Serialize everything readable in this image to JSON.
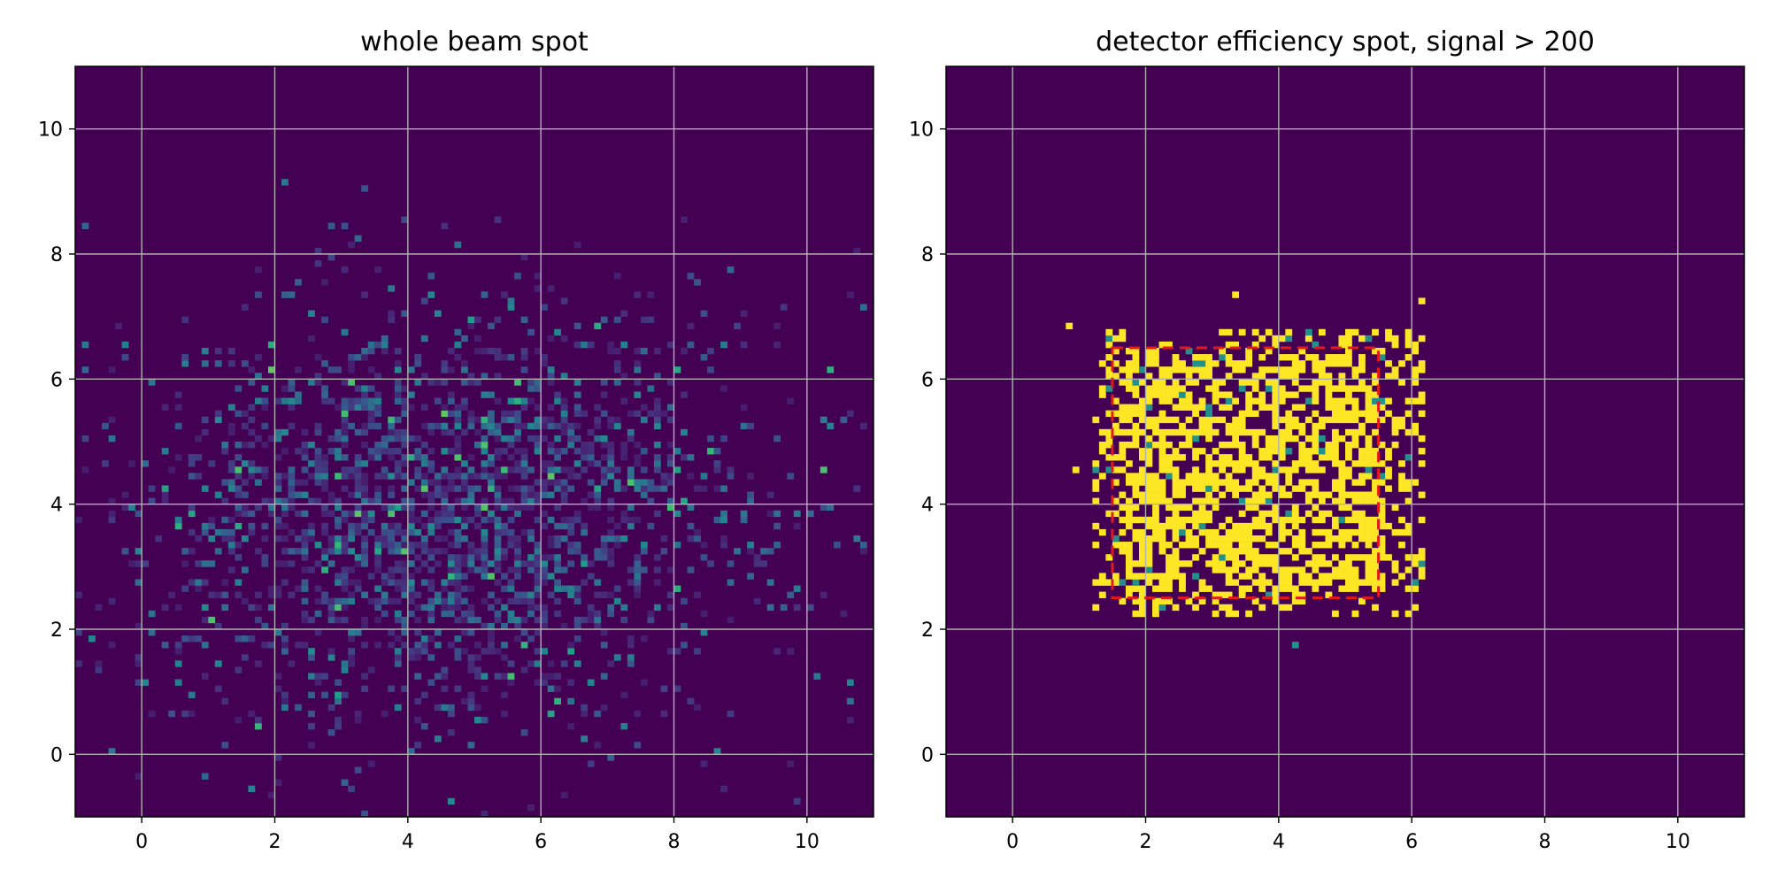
{
  "chart_data": [
    {
      "type": "heatmap",
      "title": "whole beam spot",
      "xlabel": "",
      "ylabel": "",
      "xlim": [
        -1,
        11
      ],
      "ylim": [
        -1,
        11
      ],
      "xticks": [
        0,
        2,
        4,
        6,
        8,
        10
      ],
      "yticks": [
        0,
        2,
        4,
        6,
        8,
        10
      ],
      "grid": true,
      "colormap": "viridis",
      "background": "#440154",
      "bins": {
        "x_min": -1,
        "x_max": 11,
        "y_min": -1,
        "y_max": 11,
        "nx": 120,
        "ny": 120
      },
      "distribution": {
        "shape": "gaussian-like cloud",
        "center": [
          4.5,
          3.8
        ],
        "spread": [
          2.6,
          1.9
        ],
        "peak_relative": 1.0
      }
    },
    {
      "type": "heatmap",
      "title": "detector efficiency spot, signal > 200",
      "xlabel": "",
      "ylabel": "",
      "xlim": [
        -1,
        11
      ],
      "ylim": [
        -1,
        11
      ],
      "xticks": [
        0,
        2,
        4,
        6,
        8,
        10
      ],
      "yticks": [
        0,
        2,
        4,
        6,
        8,
        10
      ],
      "grid": true,
      "colormap": "viridis",
      "background": "#440154",
      "bins": {
        "x_min": -1,
        "x_max": 11,
        "y_min": -1,
        "y_max": 11,
        "nx": 120,
        "ny": 120
      },
      "distribution": {
        "shape": "square efficient region",
        "x_range": [
          1.2,
          6.2
        ],
        "y_range": [
          2.2,
          6.8
        ],
        "fill_fraction": 0.55
      },
      "annotation_box": {
        "x0": 1.5,
        "x1": 5.5,
        "y0": 2.5,
        "y1": 6.5,
        "color": "#e31a1c",
        "style": "dashed"
      }
    }
  ],
  "colors": {
    "grid": "#b0b0b0",
    "axis": "#000000",
    "box": "#e31a1c"
  }
}
